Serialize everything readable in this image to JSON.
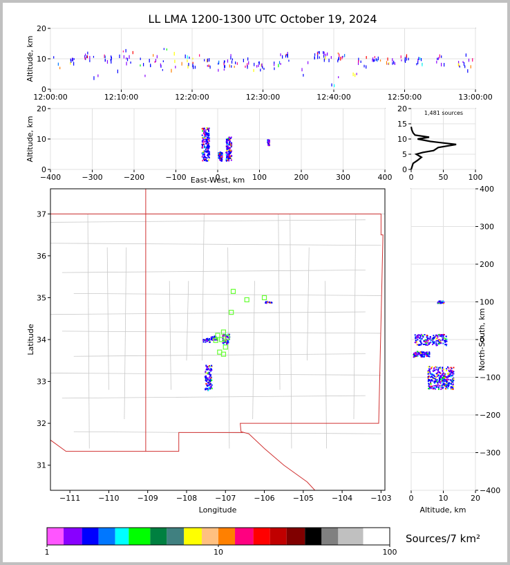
{
  "title": "LL LMA 1200-1300 UTC October 19, 2024",
  "colorbar": {
    "label": "Sources/7 km²",
    "ticks": [
      "1",
      "10",
      "100"
    ],
    "colors": [
      "#ff55ff",
      "#8800ff",
      "#0000ff",
      "#0077ff",
      "#00ffff",
      "#00ff00",
      "#008040",
      "#408080",
      "#ffff00",
      "#ffc080",
      "#ff8000",
      "#ff0080",
      "#ff0000",
      "#c00000",
      "#800000",
      "#000000",
      "#808080",
      "#c0c0c0",
      "#ffffff"
    ]
  },
  "chart_data": [
    {
      "panel": "time-height",
      "type": "scatter",
      "xlabel": "",
      "ylabel": "Altitude, km",
      "xticks": [
        "12:00:00",
        "12:10:00",
        "12:20:00",
        "12:30:00",
        "12:40:00",
        "12:50:00",
        "13:00:00"
      ],
      "xlim_minutes": [
        0,
        60
      ],
      "ylim": [
        0,
        20
      ],
      "yticks": [
        "0",
        "10",
        "20"
      ],
      "grid": true,
      "clusters_minutes_km": [
        [
          1,
          2,
          11
        ],
        [
          3,
          7,
          10
        ],
        [
          5,
          9,
          12
        ],
        [
          6.5,
          3,
          12
        ],
        [
          8,
          9,
          11
        ],
        [
          10,
          5,
          13
        ],
        [
          11,
          6,
          12
        ],
        [
          13,
          4,
          12
        ],
        [
          14.5,
          7,
          11
        ],
        [
          16,
          6,
          13
        ],
        [
          17.5,
          4,
          13
        ],
        [
          19,
          7,
          11
        ],
        [
          20.5,
          6,
          12
        ],
        [
          22,
          7,
          11
        ],
        [
          24,
          6,
          9
        ],
        [
          25,
          6,
          10
        ],
        [
          26,
          7,
          11
        ],
        [
          27.5,
          6,
          10
        ],
        [
          29,
          6,
          9
        ],
        [
          30,
          6,
          9
        ],
        [
          32,
          6,
          9
        ],
        [
          33,
          9,
          12
        ],
        [
          36,
          3,
          9
        ],
        [
          37.5,
          10,
          12
        ],
        [
          39,
          9,
          12
        ],
        [
          40,
          1,
          6
        ],
        [
          41,
          9,
          12
        ],
        [
          43,
          3,
          5
        ],
        [
          44,
          7,
          12
        ],
        [
          46,
          9,
          11
        ],
        [
          48,
          8,
          10
        ],
        [
          50,
          9,
          11
        ],
        [
          52,
          8,
          11
        ],
        [
          55,
          8,
          11
        ],
        [
          58,
          7,
          9
        ],
        [
          59,
          5,
          12
        ]
      ]
    },
    {
      "panel": "east-west-altitude",
      "type": "scatter",
      "xlabel": "East-West, km",
      "ylabel": "Altitude, km",
      "xlim": [
        -400,
        400
      ],
      "xticks": [
        "−400",
        "−300",
        "−200",
        "−100",
        "0",
        "100",
        "200",
        "300",
        "400"
      ],
      "ylim": [
        0,
        20
      ],
      "yticks": [
        "0",
        "10",
        "20"
      ],
      "grid": true,
      "clusters_km": [
        [
          -30,
          3,
          14,
          8
        ],
        [
          5,
          3,
          6,
          4
        ],
        [
          25,
          3,
          11,
          6
        ],
        [
          120,
          8,
          10,
          2
        ]
      ]
    },
    {
      "panel": "altitude-histogram",
      "type": "line",
      "annotation": "1,481 sources",
      "xlim": [
        0,
        100
      ],
      "xticks": [
        "0",
        "50",
        "100"
      ],
      "ylim": [
        0,
        20
      ],
      "yticks": [
        "0",
        "5",
        "10",
        "15",
        "20"
      ],
      "grid": true,
      "profile_count_km": [
        [
          0,
          0
        ],
        [
          3,
          2
        ],
        [
          10,
          3
        ],
        [
          16,
          4
        ],
        [
          8,
          5
        ],
        [
          18,
          5.6
        ],
        [
          35,
          6.2
        ],
        [
          42,
          7.2
        ],
        [
          70,
          8.2
        ],
        [
          30,
          9.2
        ],
        [
          10,
          10
        ],
        [
          28,
          10.6
        ],
        [
          6,
          11.3
        ],
        [
          3,
          12
        ],
        [
          1,
          13
        ],
        [
          0,
          14
        ]
      ]
    },
    {
      "panel": "plan-view",
      "type": "scatter",
      "xlabel": "Longitude",
      "ylabel": "Latitude",
      "xlim": [
        -111.5,
        -102.9
      ],
      "xticks": [
        "−111",
        "−110",
        "−109",
        "−108",
        "−107",
        "−106",
        "−105",
        "−104",
        "−103"
      ],
      "ylim": [
        30.4,
        37.6
      ],
      "yticks": [
        "31",
        "32",
        "33",
        "34",
        "35",
        "36",
        "37"
      ],
      "lma_stations": [
        [
          -106.8,
          35.15
        ],
        [
          -106.45,
          34.95
        ],
        [
          -106.0,
          35.0
        ],
        [
          -106.85,
          34.65
        ],
        [
          -107.2,
          34.1
        ],
        [
          -107.05,
          34.18
        ],
        [
          -106.95,
          34.05
        ],
        [
          -107.1,
          34.0
        ],
        [
          -107.25,
          33.98
        ],
        [
          -107.0,
          33.82
        ],
        [
          -107.05,
          33.65
        ],
        [
          -107.15,
          33.7
        ]
      ],
      "source_regions": [
        [
          -107.45,
          33.4,
          32.8
        ],
        [
          -107.0,
          34.15,
          33.9
        ],
        [
          -107.3,
          34.1,
          34.0
        ],
        [
          -107.5,
          34.05,
          33.95
        ],
        [
          -105.9,
          34.92,
          34.88
        ]
      ]
    },
    {
      "panel": "altitude-north-south",
      "type": "scatter",
      "xlabel": "Altitude, km",
      "ylabel": "North-South, km",
      "xlim": [
        0,
        20
      ],
      "xticks": [
        "0",
        "10",
        "20"
      ],
      "ylim": [
        -400,
        400
      ],
      "yticks": [
        "−400",
        "−300",
        "−200",
        "−100",
        "0",
        "100",
        "200",
        "300",
        "400"
      ],
      "grid": true,
      "clusters_km_km": [
        [
          6,
          10,
          -15,
          15
        ],
        [
          9,
          8,
          -130,
          -70
        ],
        [
          3,
          5,
          -45,
          -30
        ],
        [
          9,
          2,
          98,
          104
        ]
      ]
    }
  ]
}
